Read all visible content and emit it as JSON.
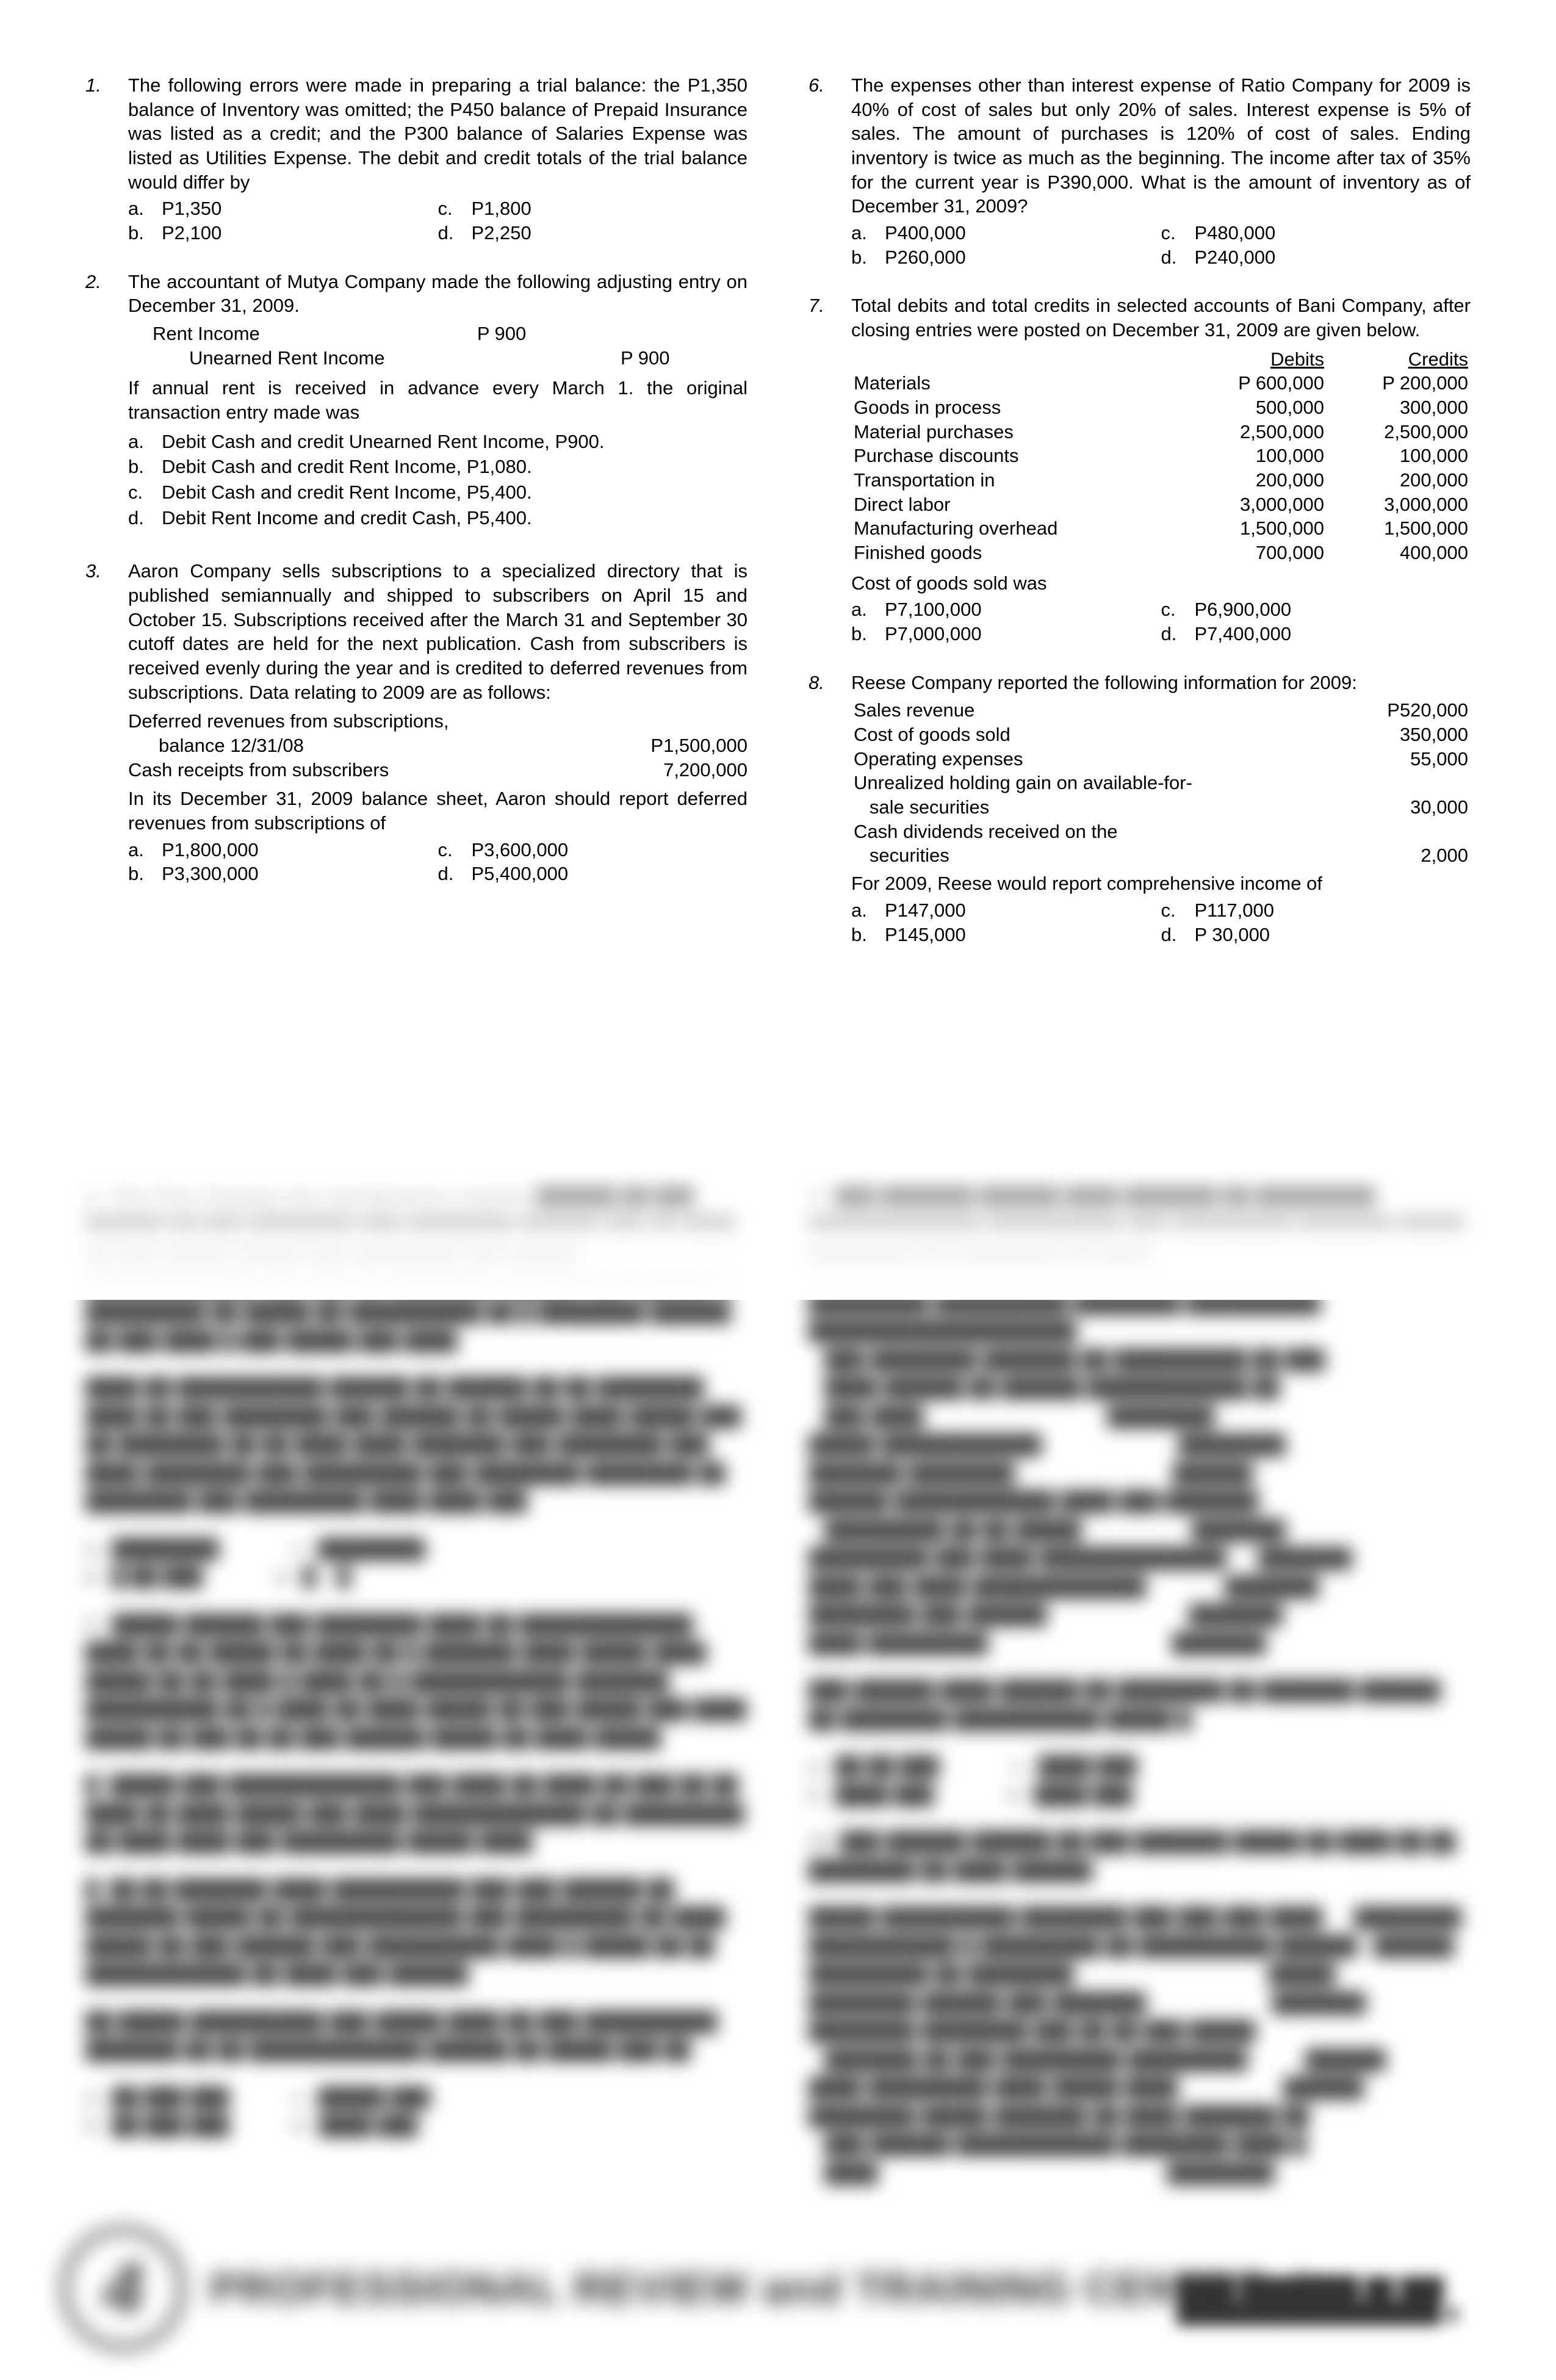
{
  "left": {
    "q1": {
      "num": "1.",
      "text": "The following errors were made in preparing a trial balance: the P1,350 balance of Inventory was omitted; the P450 balance of Prepaid Insurance was listed as a credit; and the P300 balance of Salaries Expense was listed as Utilities Expense.  The debit and credit totals of the trial balance would differ by",
      "a": "P1,350",
      "c": "P1,800",
      "b": "P2,100",
      "d": "P2,250"
    },
    "q2": {
      "num": "2.",
      "text": "The accountant of Mutya Company made the following adjusting entry on December 31, 2009.",
      "entry_l1a": "Rent Income",
      "entry_l1b": "P   900",
      "entry_l2a": "Unearned Rent Income",
      "entry_l2b": "P   900",
      "mid": "If annual rent is received in advance every March 1. the original transaction entry made was",
      "oa": "Debit Cash and credit Unearned Rent Income, P900.",
      "ob": "Debit Cash and credit Rent Income, P1,080.",
      "oc": "Debit Cash and credit Rent Income, P5,400.",
      "od": "Debit Rent Income and credit Cash, P5,400."
    },
    "q3": {
      "num": "3.",
      "text": "Aaron Company sells subscriptions to a specialized directory that is published semiannually and shipped to subscribers on April 15 and October 15.  Subscriptions received after the March 31 and September 30 cutoff dates are held for the next publication.  Cash from subscribers is received evenly during the year and is credited to deferred revenues from subscriptions.  Data relating to 2009 are as follows:",
      "r1a": "Deferred revenues from subscriptions,",
      "r1b": "balance 12/31/08",
      "r1v": "P1,500,000",
      "r2a": "Cash receipts from subscribers",
      "r2v": "7,200,000",
      "mid": "In its December 31, 2009 balance sheet, Aaron should report deferred revenues from subscriptions of",
      "a": "P1,800,000",
      "c": "P3,600,000",
      "b": "P3,300,000",
      "d": "P5,400,000"
    }
  },
  "right": {
    "q6": {
      "num": "6.",
      "text": "The expenses other than interest expense of Ratio Company for 2009 is 40% of cost of sales but only 20% of sales.  Interest expense is 5% of sales.  The amount of purchases is 120% of cost of sales.  Ending inventory is twice as much as the beginning.  The income after tax of 35% for the current year is P390,000.  What is the amount of inventory as of December 31, 2009?",
      "a": "P400,000",
      "c": "P480,000",
      "b": "P260,000",
      "d": "P240,000"
    },
    "q7": {
      "num": "7.",
      "text": "Total debits and total credits in selected accounts of Bani Company, after closing entries were posted on December 31, 2009 are given below.",
      "hd": "Debits",
      "hc": "Credits",
      "rows": [
        [
          "Materials",
          "P 600,000",
          "P 200,000"
        ],
        [
          "Goods in process",
          "500,000",
          "300,000"
        ],
        [
          "Material purchases",
          "2,500,000",
          "2,500,000"
        ],
        [
          "Purchase discounts",
          "100,000",
          "100,000"
        ],
        [
          "Transportation in",
          "200,000",
          "200,000"
        ],
        [
          "Direct labor",
          "3,000,000",
          "3,000,000"
        ],
        [
          "Manufacturing overhead",
          "1,500,000",
          "1,500,000"
        ],
        [
          "Finished goods",
          "700,000",
          "400,000"
        ]
      ],
      "mid": "Cost of goods sold was",
      "a": "P7,100,000",
      "c": "P6,900,000",
      "b": "P7,000,000",
      "d": "P7,400,000"
    },
    "q8": {
      "num": "8.",
      "text": "Reese Company reported the following information for 2009:",
      "rows": [
        [
          "Sales revenue",
          "P520,000"
        ],
        [
          "Cost of goods sold",
          "350,000"
        ],
        [
          "Operating expenses",
          "55,000"
        ],
        [
          "Unrealized holding gain on available-for-",
          ""
        ],
        [
          "   sale securities",
          "30,000"
        ],
        [
          "Cash dividends received on the",
          ""
        ],
        [
          "   securities",
          "2,000"
        ]
      ],
      "mid": "For 2009, Reese would report comprehensive income of",
      "a": "P147,000",
      "c": "P117,000",
      "b": "P145,000",
      "d": "P  30,000"
    }
  }
}
